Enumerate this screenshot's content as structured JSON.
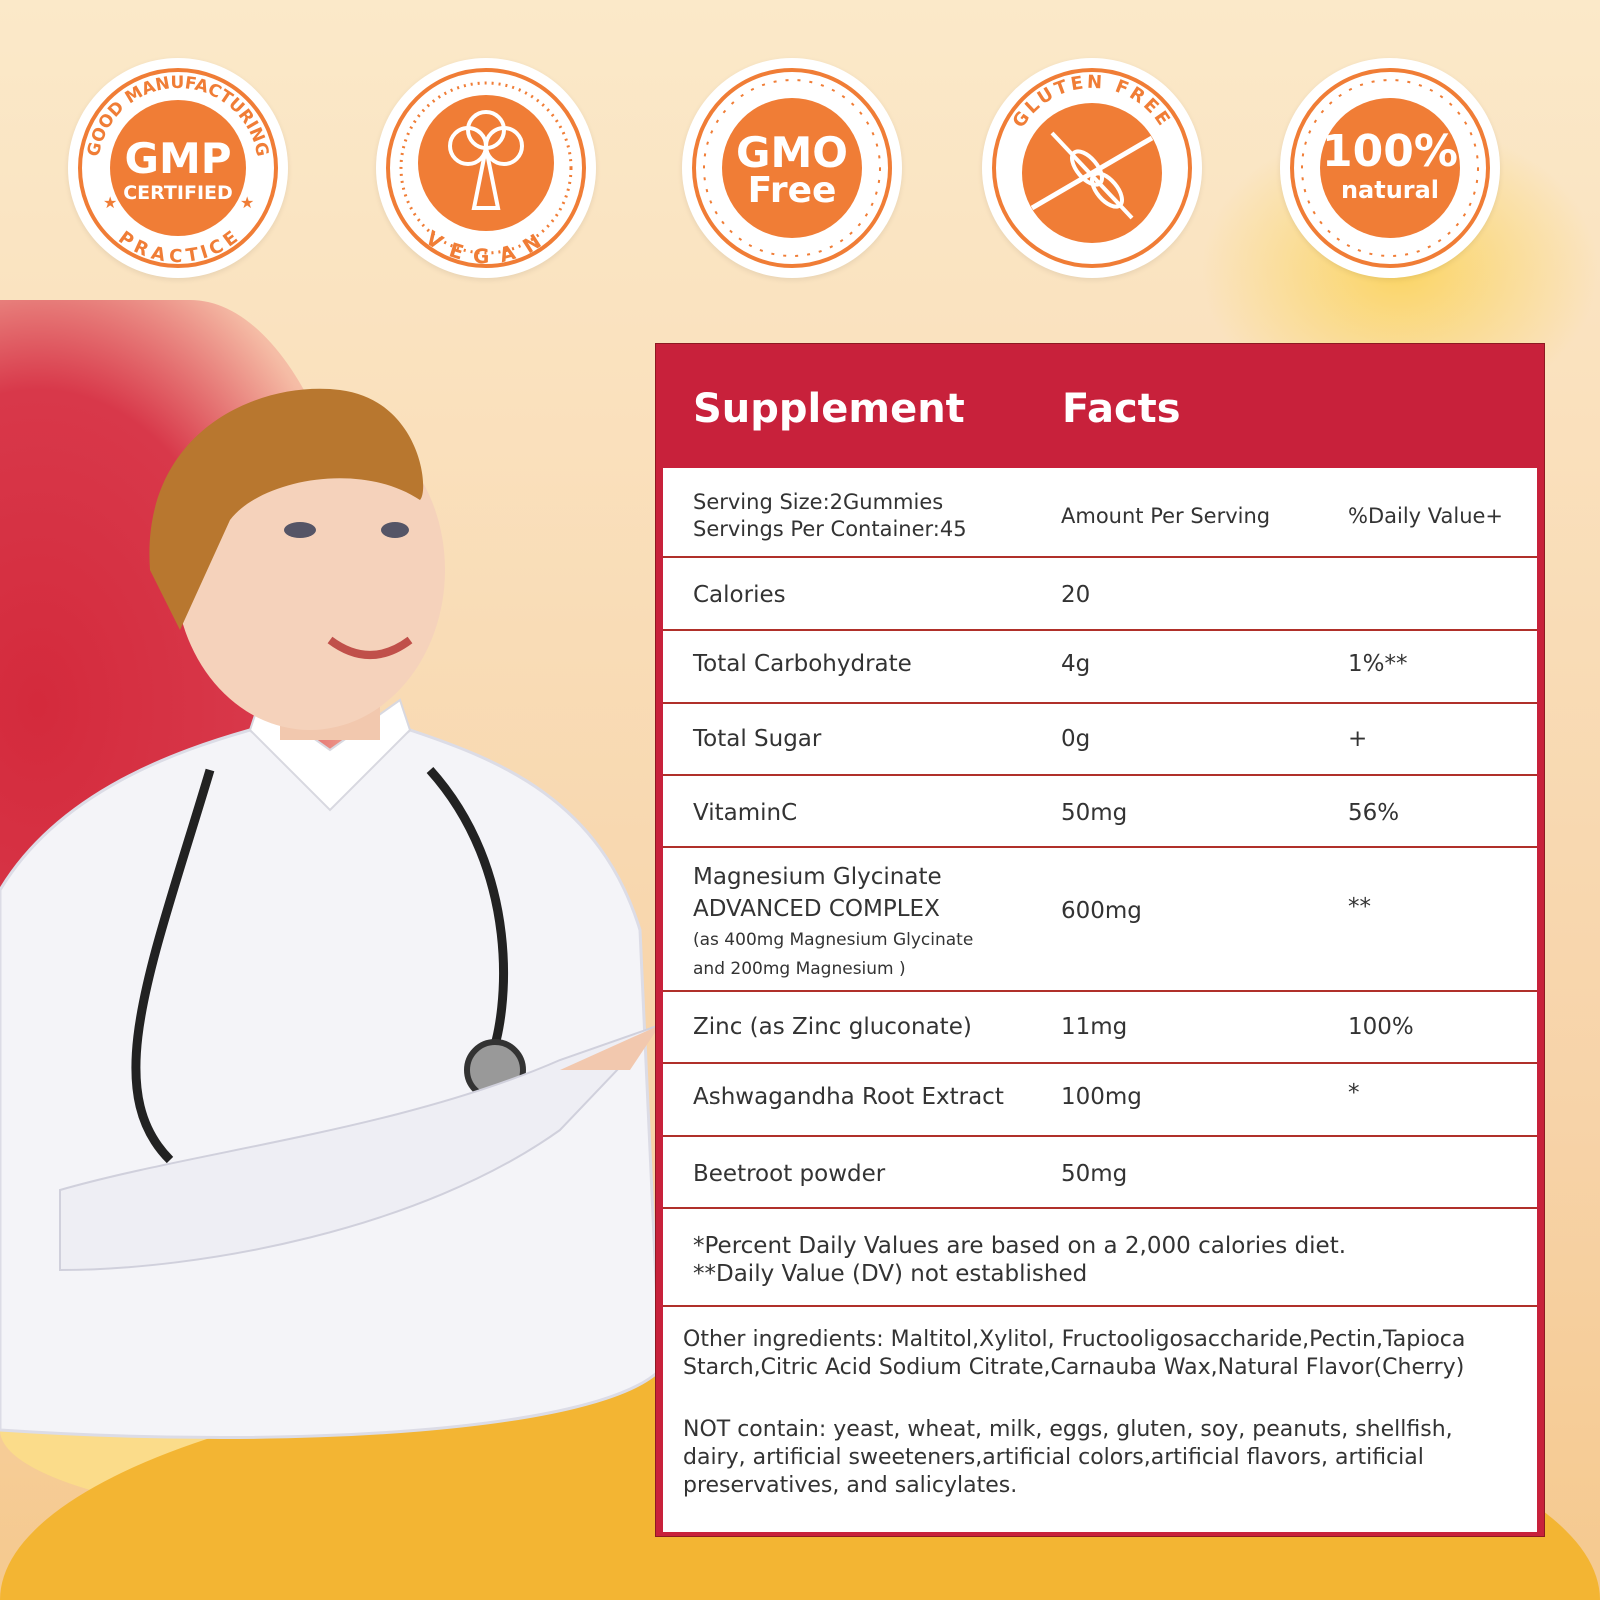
{
  "badges": [
    {
      "name": "gmp",
      "arc_top": "GOOD MANUFACTURING",
      "main": "GMP",
      "sub": "CERTIFIED",
      "arc_bottom": "PRACTICE"
    },
    {
      "name": "vegan",
      "icon": "broccoli-icon",
      "arc_bottom": "VEGAN"
    },
    {
      "name": "gmo-free",
      "main": "GMO",
      "sub": "Free"
    },
    {
      "name": "gluten-free",
      "icon": "crossed-wheat-icon",
      "arc_top": "GLUTEN FREE"
    },
    {
      "name": "natural",
      "main": "100%",
      "sub": "natural"
    }
  ],
  "colors": {
    "badge_orange": "#f07d36",
    "panel_red": "#c8213b",
    "row_line": "#b0302a"
  },
  "facts": {
    "title_left": "Supplement",
    "title_right": "Facts",
    "serving_size": "Serving Size:2Gummies",
    "servings_per_container": "Servings Per Container:45",
    "amount_header": "Amount Per Serving",
    "dv_header": "%Daily Value+",
    "rows": [
      {
        "name": "Calories",
        "amount": "20",
        "dv": ""
      },
      {
        "name": "Total Carbohydrate",
        "amount": "4g",
        "dv": "1%**"
      },
      {
        "name": "Total Sugar",
        "amount": "0g",
        "dv": "+"
      },
      {
        "name": "VitaminC",
        "amount": "50mg",
        "dv": "56%"
      },
      {
        "name": "Magnesium Glycinate",
        "name2": "ADVANCED COMPLEX",
        "detail1": "(as 400mg Magnesium Glycinate",
        "detail2": "and 200mg Magnesium )",
        "amount": "600mg",
        "dv": "**"
      },
      {
        "name": "Zinc (as Zinc gluconate)",
        "amount": "11mg",
        "dv": "100%"
      },
      {
        "name": "Ashwagandha Root Extract",
        "amount": "100mg",
        "dv": "*"
      },
      {
        "name": "Beetroot powder",
        "amount": "50mg",
        "dv": ""
      }
    ],
    "footnote1": "*Percent Daily Values are based on a 2,000 calories diet.",
    "footnote2": "**Daily Value (DV) not established",
    "other_ingredients": "Other ingredients: Maltitol,Xylitol, Fructooligosaccharide,Pectin,Tapioca Starch,Citric Acid Sodium Citrate,Carnauba Wax,Natural Flavor(Cherry)",
    "not_contain": "NOT contain: yeast, wheat, milk, eggs, gluten, soy, peanuts, shellfish, dairy, artificial sweeteners,artificial colors,artificial flavors, artificial preservatives, and salicylates."
  }
}
